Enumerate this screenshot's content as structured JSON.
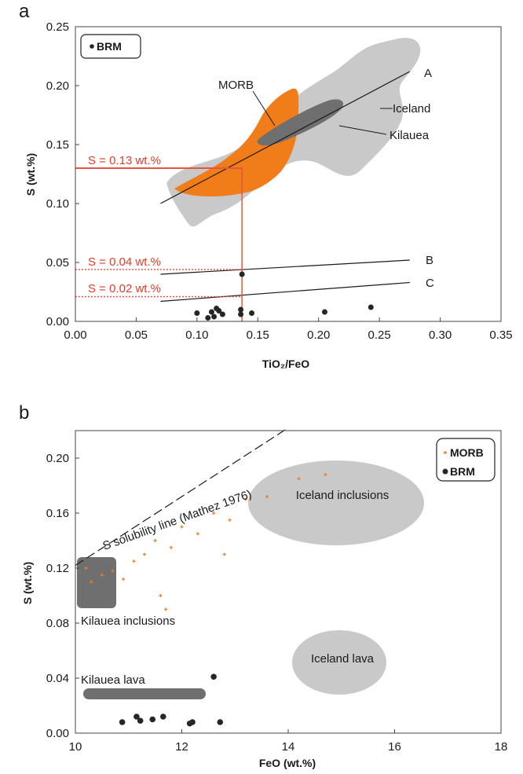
{
  "colors": {
    "orange": "#f07d1a",
    "red": "#e8553e",
    "lightgray": "#c9c9c9",
    "darkgray": "#707070",
    "point": "#262626"
  },
  "chart_data": [
    {
      "type": "scatter",
      "panel_label": "a",
      "xlabel": "TiO₂/FeO",
      "ylabel": "S (wt.%)",
      "xlim": [
        0,
        0.35
      ],
      "ylim": [
        0,
        0.25
      ],
      "xticks": [
        "0.00",
        "0.05",
        "0.10",
        "0.15",
        "0.20",
        "0.25",
        "0.30",
        "0.35"
      ],
      "yticks": [
        "0.00",
        "0.05",
        "0.10",
        "0.15",
        "0.20",
        "0.25"
      ],
      "legend": {
        "placement": "top-left",
        "entries": [
          "BRM"
        ]
      },
      "series": [
        {
          "name": "BRM",
          "points": [
            [
              0.1,
              0.007
            ],
            [
              0.109,
              0.003
            ],
            [
              0.112,
              0.008
            ],
            [
              0.114,
              0.004
            ],
            [
              0.116,
              0.011
            ],
            [
              0.118,
              0.009
            ],
            [
              0.121,
              0.006
            ],
            [
              0.136,
              0.01
            ],
            [
              0.136,
              0.006
            ],
            [
              0.137,
              0.04
            ],
            [
              0.145,
              0.007
            ],
            [
              0.205,
              0.008
            ],
            [
              0.243,
              0.012
            ]
          ]
        }
      ],
      "regions": [
        {
          "label": "MORB"
        },
        {
          "label": "Iceland"
        },
        {
          "label": "Kilauea"
        }
      ],
      "lines": [
        {
          "label": "A",
          "from": [
            0.07,
            0.1
          ],
          "to": [
            0.275,
            0.212
          ]
        },
        {
          "label": "B",
          "from": [
            0.07,
            0.04
          ],
          "to": [
            0.275,
            0.052
          ]
        },
        {
          "label": "C",
          "from": [
            0.07,
            0.017
          ],
          "to": [
            0.275,
            0.033
          ]
        }
      ],
      "annotations": [
        "S = 0.13 wt.%",
        "S = 0.04 wt.%",
        "S = 0.02 wt.%"
      ]
    },
    {
      "type": "scatter",
      "panel_label": "b",
      "xlabel": "FeO (wt.%)",
      "ylabel": "S (wt.%)",
      "xlim": [
        10,
        18
      ],
      "ylim": [
        0,
        0.22
      ],
      "xticks": [
        "10",
        "12",
        "14",
        "16",
        "18"
      ],
      "yticks": [
        "0.00",
        "0.04",
        "0.08",
        "0.12",
        "0.16",
        "0.20"
      ],
      "legend": {
        "placement": "top-right",
        "entries": [
          "MORB",
          "BRM"
        ]
      },
      "series": [
        {
          "name": "BRM",
          "points": [
            [
              10.88,
              0.008
            ],
            [
              11.15,
              0.012
            ],
            [
              11.22,
              0.009
            ],
            [
              11.45,
              0.01
            ],
            [
              11.65,
              0.012
            ],
            [
              12.15,
              0.007
            ],
            [
              12.2,
              0.008
            ],
            [
              12.6,
              0.041
            ],
            [
              12.72,
              0.008
            ]
          ]
        },
        {
          "name": "MORB",
          "points": [
            [
              10.2,
              0.12
            ],
            [
              10.3,
              0.11
            ],
            [
              10.5,
              0.115
            ],
            [
              10.7,
              0.118
            ],
            [
              10.9,
              0.112
            ],
            [
              11.1,
              0.125
            ],
            [
              11.3,
              0.13
            ],
            [
              11.5,
              0.14
            ],
            [
              11.6,
              0.1
            ],
            [
              11.7,
              0.09
            ],
            [
              11.8,
              0.135
            ],
            [
              12.0,
              0.15
            ],
            [
              12.3,
              0.145
            ],
            [
              12.6,
              0.16
            ],
            [
              12.9,
              0.155
            ],
            [
              13.2,
              0.17
            ],
            [
              13.6,
              0.172
            ],
            [
              14.2,
              0.185
            ],
            [
              14.7,
              0.188
            ],
            [
              12.8,
              0.13
            ]
          ]
        }
      ],
      "regions": [
        {
          "label": "Iceland inclusions"
        },
        {
          "label": "Iceland lava"
        },
        {
          "label": "Kilauea inclusions"
        },
        {
          "label": "Kilauea lava"
        }
      ],
      "annotations": [
        "S solubility line (Mathez 1976)"
      ]
    }
  ]
}
